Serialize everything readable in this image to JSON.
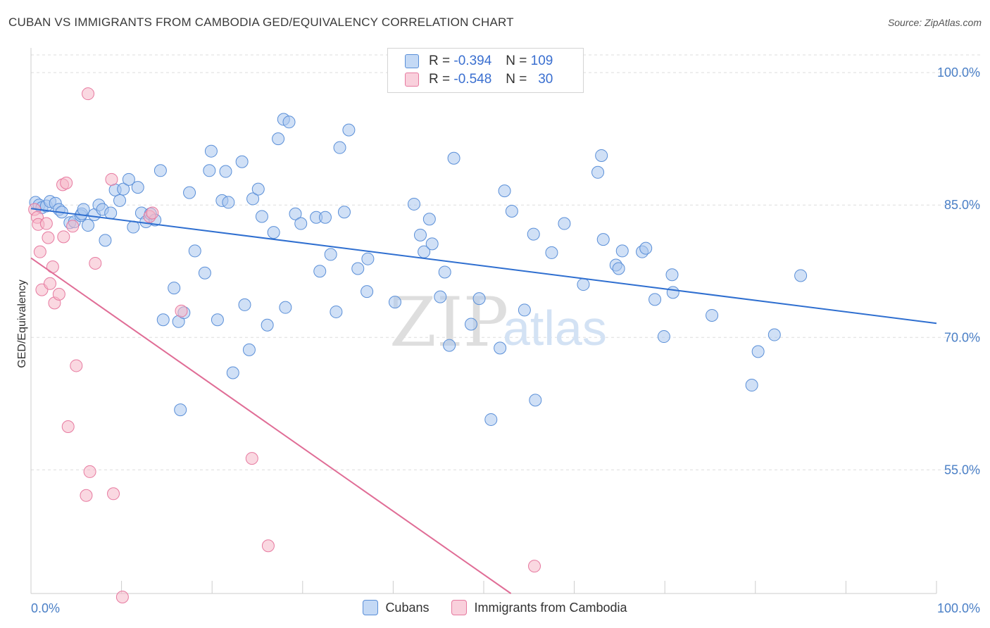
{
  "header": {
    "title": "CUBAN VS IMMIGRANTS FROM CAMBODIA GED/EQUIVALENCY CORRELATION CHART",
    "source": "Source: ZipAtlas.com"
  },
  "legend": {
    "rows": [
      {
        "r_label": "R =",
        "r_value": "-0.394",
        "n_label": "N =",
        "n_value": "109",
        "color": "#a9c6ef"
      },
      {
        "r_label": "R =",
        "r_value": "-0.548",
        "n_label": "N =",
        "n_value": "30",
        "color": "#f5b8c8"
      }
    ]
  },
  "bottom_legend": [
    {
      "label": "Cubans",
      "color": "#a9c6ef"
    },
    {
      "label": "Immigrants from Cambodia",
      "color": "#f5b8c8"
    }
  ],
  "watermark": {
    "zip": "ZIP",
    "atlas": "atlas"
  },
  "chart_data": {
    "type": "scatter",
    "ylabel": "GED/Equivalency",
    "x_tick_labels": [
      "0.0%",
      "100.0%"
    ],
    "y_tick_labels": [
      "100.0%",
      "85.0%",
      "70.0%",
      "55.0%"
    ],
    "y_ticks": [
      100,
      85,
      70,
      55
    ],
    "xlim": [
      0,
      100
    ],
    "ylim": [
      41,
      102
    ],
    "grid": true,
    "legend_position": "top-center",
    "series": [
      {
        "name": "Cubans",
        "color": "#a9c6ef",
        "stroke": "#5a8fd8",
        "trend": {
          "x": [
            0,
            100
          ],
          "y": [
            84.6,
            71.6
          ],
          "color": "#2f6fd0"
        },
        "points": [
          [
            0.5,
            85.3
          ],
          [
            0.9,
            85.0
          ],
          [
            1.2,
            84.7
          ],
          [
            1.7,
            84.9
          ],
          [
            2.1,
            85.4
          ],
          [
            2.7,
            85.2
          ],
          [
            3.1,
            84.5
          ],
          [
            3.4,
            84.2
          ],
          [
            4.3,
            83.0
          ],
          [
            4.8,
            83.1
          ],
          [
            5.5,
            83.8
          ],
          [
            5.6,
            84.0
          ],
          [
            5.8,
            84.5
          ],
          [
            6.3,
            82.7
          ],
          [
            7.0,
            83.9
          ],
          [
            7.5,
            85.0
          ],
          [
            7.9,
            84.5
          ],
          [
            8.2,
            81.0
          ],
          [
            8.8,
            84.1
          ],
          [
            9.3,
            86.7
          ],
          [
            9.8,
            85.5
          ],
          [
            10.2,
            86.8
          ],
          [
            10.8,
            87.9
          ],
          [
            11.3,
            82.5
          ],
          [
            11.8,
            87.0
          ],
          [
            12.2,
            84.1
          ],
          [
            12.7,
            83.1
          ],
          [
            13.2,
            84.0
          ],
          [
            13.7,
            83.3
          ],
          [
            14.3,
            88.9
          ],
          [
            14.6,
            72.0
          ],
          [
            15.8,
            75.6
          ],
          [
            16.3,
            71.8
          ],
          [
            16.5,
            61.8
          ],
          [
            16.9,
            72.8
          ],
          [
            17.5,
            86.4
          ],
          [
            18.1,
            79.8
          ],
          [
            19.2,
            77.3
          ],
          [
            19.7,
            88.9
          ],
          [
            19.9,
            91.1
          ],
          [
            20.6,
            72.0
          ],
          [
            21.1,
            85.5
          ],
          [
            21.5,
            88.8
          ],
          [
            21.8,
            85.3
          ],
          [
            22.3,
            66.0
          ],
          [
            23.3,
            89.9
          ],
          [
            23.6,
            73.7
          ],
          [
            24.1,
            68.6
          ],
          [
            24.5,
            85.7
          ],
          [
            25.1,
            86.8
          ],
          [
            25.5,
            83.7
          ],
          [
            26.1,
            71.4
          ],
          [
            26.8,
            81.9
          ],
          [
            27.3,
            92.5
          ],
          [
            27.9,
            94.7
          ],
          [
            28.1,
            73.4
          ],
          [
            28.5,
            94.4
          ],
          [
            29.2,
            84.0
          ],
          [
            29.8,
            82.9
          ],
          [
            31.5,
            83.6
          ],
          [
            31.9,
            77.5
          ],
          [
            32.5,
            83.6
          ],
          [
            33.1,
            79.4
          ],
          [
            33.7,
            72.9
          ],
          [
            34.1,
            91.5
          ],
          [
            34.6,
            84.2
          ],
          [
            35.1,
            93.5
          ],
          [
            36.1,
            77.8
          ],
          [
            37.1,
            75.2
          ],
          [
            37.2,
            78.9
          ],
          [
            40.2,
            74.0
          ],
          [
            42.3,
            85.1
          ],
          [
            43.0,
            81.6
          ],
          [
            43.4,
            79.7
          ],
          [
            44.0,
            83.4
          ],
          [
            44.3,
            80.6
          ],
          [
            45.2,
            74.6
          ],
          [
            45.7,
            77.4
          ],
          [
            46.2,
            69.1
          ],
          [
            46.7,
            90.3
          ],
          [
            48.6,
            71.5
          ],
          [
            49.5,
            74.4
          ],
          [
            50.8,
            60.7
          ],
          [
            51.8,
            68.8
          ],
          [
            52.3,
            86.6
          ],
          [
            53.1,
            84.3
          ],
          [
            54.5,
            73.1
          ],
          [
            55.5,
            81.7
          ],
          [
            55.7,
            62.9
          ],
          [
            57.5,
            79.6
          ],
          [
            58.9,
            82.9
          ],
          [
            61.0,
            76.0
          ],
          [
            62.6,
            88.7
          ],
          [
            63.0,
            90.6
          ],
          [
            63.2,
            81.1
          ],
          [
            64.6,
            78.2
          ],
          [
            64.9,
            77.8
          ],
          [
            65.3,
            79.8
          ],
          [
            67.5,
            79.7
          ],
          [
            67.9,
            80.1
          ],
          [
            68.9,
            74.3
          ],
          [
            69.9,
            70.1
          ],
          [
            70.8,
            77.1
          ],
          [
            70.9,
            75.1
          ],
          [
            75.2,
            72.5
          ],
          [
            80.3,
            68.4
          ],
          [
            79.6,
            64.6
          ],
          [
            82.1,
            70.3
          ],
          [
            85.0,
            77.0
          ]
        ]
      },
      {
        "name": "Immigrants from Cambodia",
        "color": "#f5b8c8",
        "stroke": "#e77aa0",
        "trend": {
          "x": [
            0,
            53
          ],
          "y": [
            79.0,
            41.0
          ],
          "color": "#e06d96"
        },
        "points": [
          [
            0.4,
            84.5
          ],
          [
            0.7,
            83.6
          ],
          [
            0.8,
            82.8
          ],
          [
            1.0,
            79.7
          ],
          [
            1.2,
            75.4
          ],
          [
            1.7,
            82.9
          ],
          [
            1.9,
            81.3
          ],
          [
            2.1,
            76.1
          ],
          [
            2.4,
            78.0
          ],
          [
            2.6,
            73.9
          ],
          [
            3.1,
            74.9
          ],
          [
            3.5,
            87.3
          ],
          [
            3.6,
            81.4
          ],
          [
            3.9,
            87.5
          ],
          [
            4.1,
            59.9
          ],
          [
            4.6,
            82.6
          ],
          [
            5.0,
            66.8
          ],
          [
            6.1,
            52.1
          ],
          [
            6.3,
            97.6
          ],
          [
            6.5,
            54.8
          ],
          [
            7.1,
            78.4
          ],
          [
            8.9,
            87.9
          ],
          [
            9.1,
            52.3
          ],
          [
            10.1,
            40.6
          ],
          [
            13.1,
            83.7
          ],
          [
            13.4,
            84.1
          ],
          [
            16.6,
            73.0
          ],
          [
            24.4,
            56.3
          ],
          [
            26.2,
            46.4
          ],
          [
            55.6,
            44.1
          ]
        ]
      }
    ]
  }
}
